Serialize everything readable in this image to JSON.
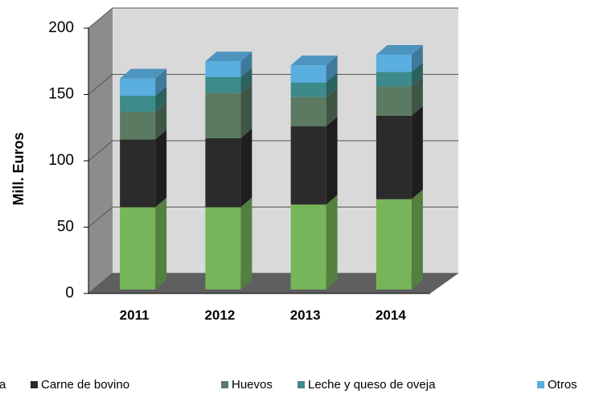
{
  "chart_data": {
    "type": "bar3d_stacked",
    "y_label": "Mill. Euros",
    "categories": [
      "2011",
      "2012",
      "2013",
      "2014"
    ],
    "series": [
      {
        "name": "a",
        "color": "#77b55a",
        "values": [
          62,
          62,
          64,
          68
        ]
      },
      {
        "name": "Carne de bovino",
        "color": "#2b2b2b",
        "values": [
          51,
          52,
          59,
          63
        ]
      },
      {
        "name": "Huevos",
        "color": "#5a7a62",
        "values": [
          21,
          34,
          22,
          22
        ]
      },
      {
        "name": "Leche y queso de oveja",
        "color": "#3c8a8a",
        "values": [
          12,
          12,
          11,
          11
        ]
      },
      {
        "name": "Otros",
        "color": "#5aaee0",
        "values": [
          13,
          12,
          13,
          13
        ]
      }
    ],
    "ylim": [
      0,
      200
    ],
    "yticks": [
      0,
      50,
      100,
      150,
      200
    ],
    "grid": true
  }
}
